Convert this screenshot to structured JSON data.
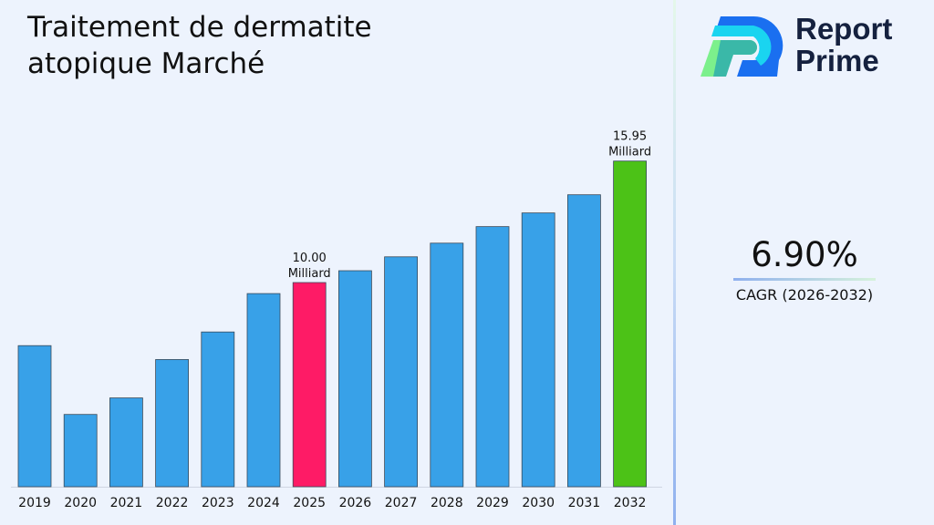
{
  "chart_data": {
    "type": "bar",
    "title": "Traitement de dermatite atopique Marché",
    "categories": [
      "2019",
      "2020",
      "2021",
      "2022",
      "2023",
      "2024",
      "2025",
      "2026",
      "2027",
      "2028",
      "2029",
      "2030",
      "2031",
      "2032"
    ],
    "values": [
      6.91,
      3.54,
      4.35,
      6.23,
      7.58,
      9.46,
      10.0,
      10.58,
      11.26,
      11.93,
      12.74,
      13.41,
      14.3,
      15.95
    ],
    "unit": "Milliard",
    "data_labels": [
      {
        "category": "2025",
        "text": "10.00",
        "unit": "Milliard"
      },
      {
        "category": "2032",
        "text": "15.95",
        "unit": "Milliard"
      }
    ],
    "colors": {
      "default": "#38a1e8",
      "highlight_2025": "#fe1b66",
      "highlight_2032": "#4cc217"
    },
    "ylim": [
      0,
      16
    ],
    "grid": false,
    "xlabel": "",
    "ylabel": ""
  },
  "title": "Traitement de dermatite atopique Marché",
  "logo": {
    "line1": "Report",
    "line2": "Prime"
  },
  "cagr": {
    "value": "6.90%",
    "label": "CAGR (2026-2032)"
  }
}
